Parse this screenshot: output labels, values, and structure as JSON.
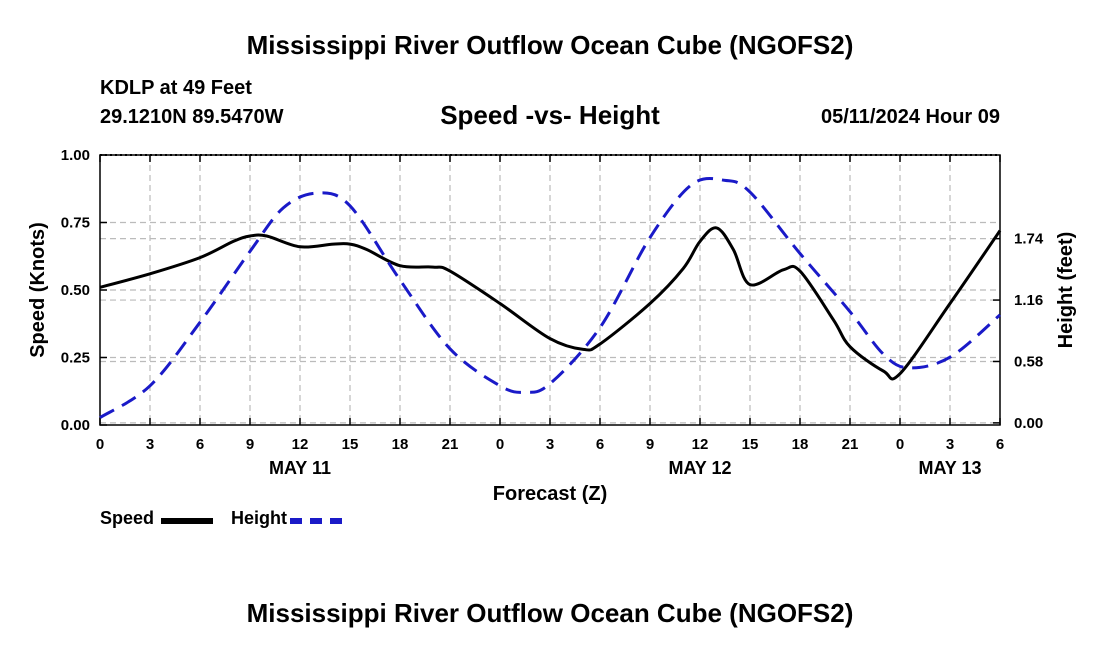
{
  "header": {
    "title": "Mississippi River Outflow Ocean Cube (NGOFS2)",
    "station": "KDLP at 49 Feet",
    "coords": "29.1210N  89.5470W",
    "subtitle": "Speed -vs- Height",
    "date": "05/11/2024 Hour 09"
  },
  "footer": {
    "title": "Mississippi River Outflow Ocean Cube (NGOFS2)"
  },
  "legend": {
    "speed_label": "Speed",
    "height_label": "Height"
  },
  "colors": {
    "speed": "#000000",
    "height": "#1a1ac8",
    "grid": "#bbbbbb"
  },
  "chart_data": {
    "type": "line",
    "xlabel": "Forecast (Z)",
    "ylabel_left": "Speed (Knots)",
    "ylabel_right": "Height (feet)",
    "xlim": [
      0,
      54
    ],
    "ylim_left": [
      0,
      1
    ],
    "ylim_right": [
      -0.02,
      2.53
    ],
    "grid": true,
    "x_ticks": [
      0,
      3,
      6,
      9,
      12,
      15,
      18,
      21,
      24,
      27,
      30,
      33,
      36,
      39,
      42,
      45,
      48,
      51,
      54
    ],
    "x_tick_labels": [
      "0",
      "3",
      "6",
      "9",
      "12",
      "15",
      "18",
      "21",
      "0",
      "3",
      "6",
      "9",
      "12",
      "15",
      "18",
      "21",
      "0",
      "3",
      "6"
    ],
    "y_ticks_left": [
      0,
      0.25,
      0.5,
      0.75,
      1.0
    ],
    "y_tick_labels_left": [
      "0.00",
      "0.25",
      "0.50",
      "0.75",
      "1.00"
    ],
    "y_ticks_right": [
      0,
      0.58,
      1.16,
      1.74
    ],
    "y_tick_labels_right": [
      "0.00",
      "0.58",
      "1.16",
      "1.74"
    ],
    "day_labels": [
      {
        "x": 12,
        "label": "MAY 11"
      },
      {
        "x": 36,
        "label": "MAY 12"
      },
      {
        "x": 51,
        "label": "MAY 13"
      }
    ],
    "series": [
      {
        "name": "Speed",
        "axis": "left",
        "x": [
          0,
          3,
          6,
          8,
          9,
          10,
          12,
          14,
          15,
          16,
          18,
          20,
          21,
          24,
          27,
          29,
          30,
          33,
          35,
          36,
          37,
          38,
          39,
          41,
          42,
          44,
          45,
          47,
          48,
          51,
          54
        ],
        "values": [
          0.51,
          0.56,
          0.62,
          0.68,
          0.7,
          0.7,
          0.66,
          0.67,
          0.67,
          0.65,
          0.59,
          0.585,
          0.57,
          0.45,
          0.32,
          0.28,
          0.3,
          0.45,
          0.58,
          0.68,
          0.73,
          0.65,
          0.52,
          0.575,
          0.57,
          0.39,
          0.29,
          0.2,
          0.19,
          0.45,
          0.72
        ]
      },
      {
        "name": "Height",
        "axis": "right",
        "x": [
          0,
          3,
          6,
          9,
          11,
          13,
          15,
          18,
          21,
          24,
          25.5,
          27,
          30,
          33,
          35.5,
          37.5,
          39,
          42,
          45,
          47,
          48.5,
          51,
          54
        ],
        "values": [
          0.05,
          0.35,
          0.95,
          1.62,
          2.03,
          2.17,
          2.05,
          1.35,
          0.7,
          0.35,
          0.29,
          0.37,
          0.9,
          1.75,
          2.25,
          2.29,
          2.18,
          1.6,
          1.05,
          0.65,
          0.52,
          0.62,
          1.02
        ]
      }
    ]
  }
}
